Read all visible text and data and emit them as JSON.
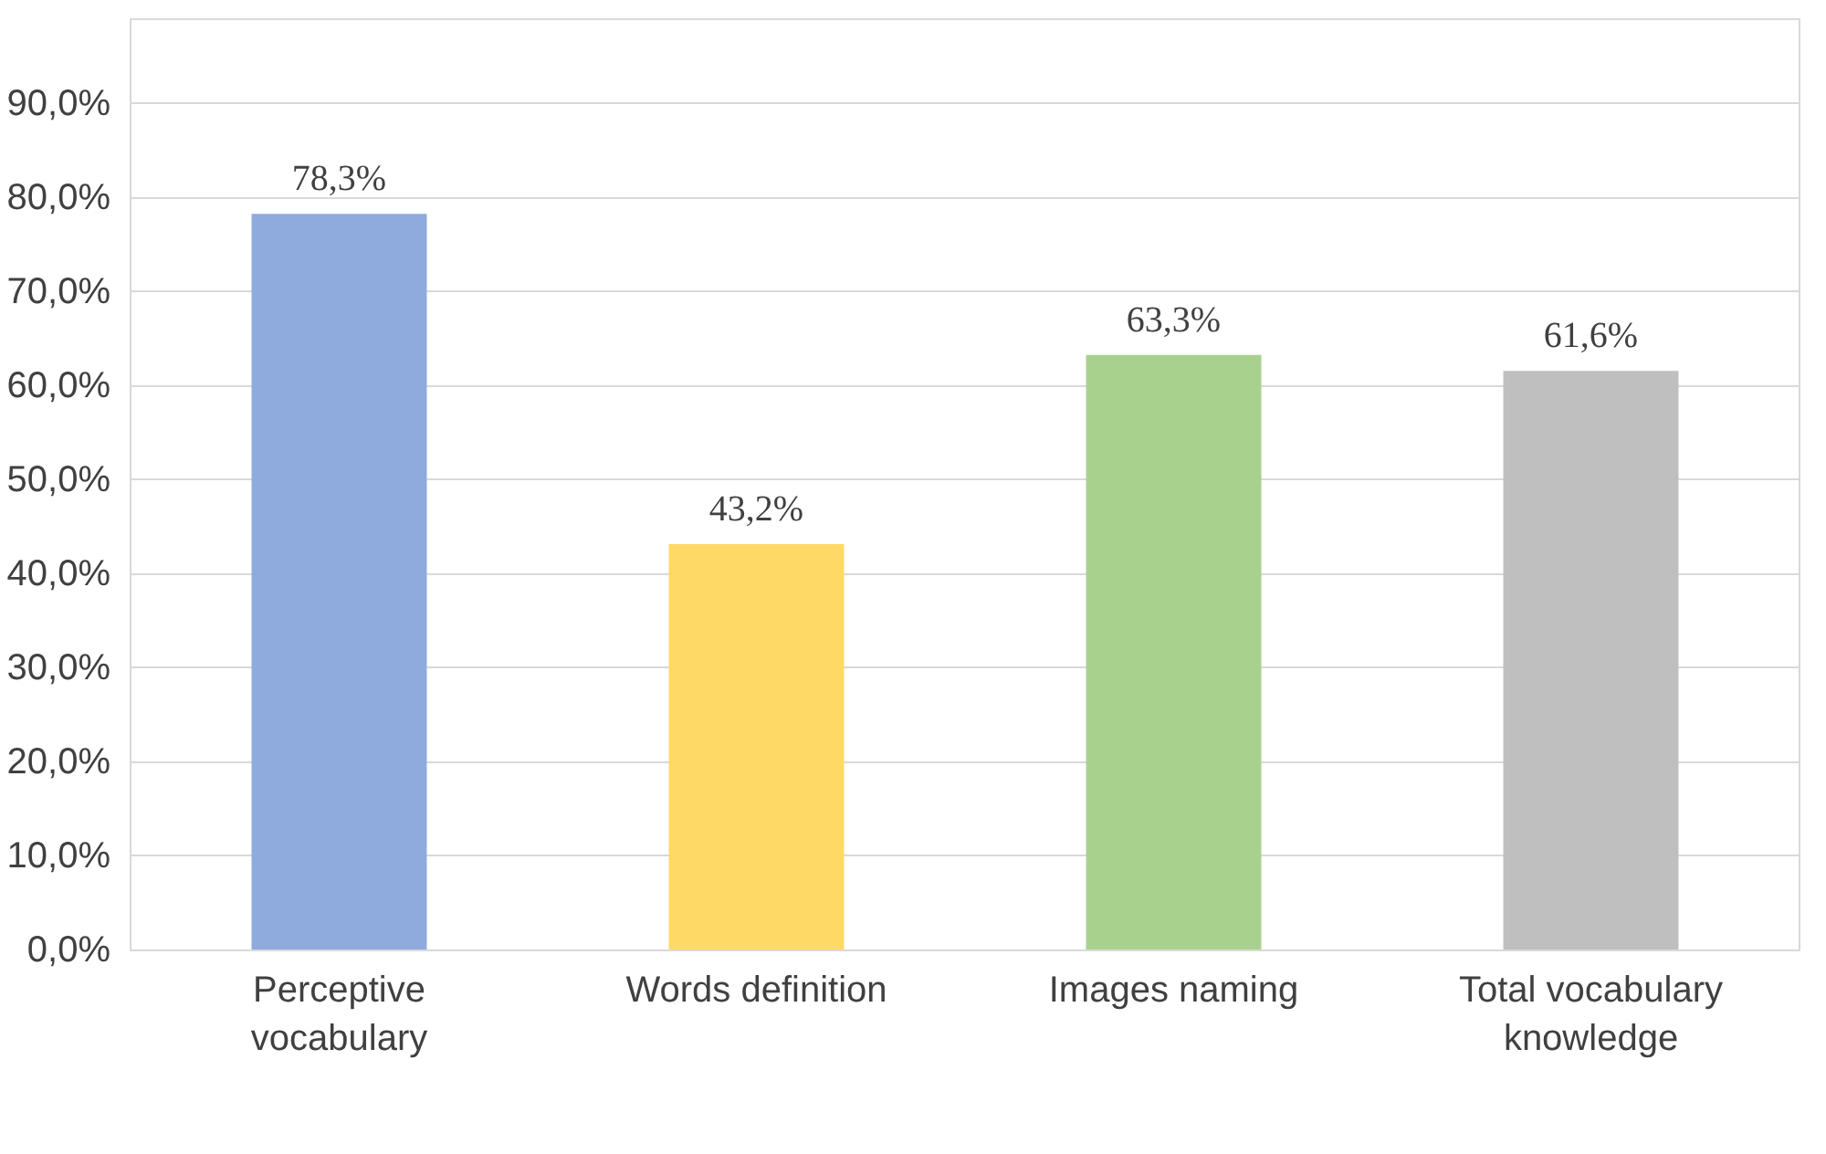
{
  "chart_data": {
    "type": "bar",
    "categories": [
      "Perceptive vocabulary",
      "Words definition",
      "Images naming",
      "Total vocabulary knowledge"
    ],
    "values": [
      78.3,
      43.2,
      63.3,
      61.6
    ],
    "colors": [
      "#8faadc",
      "#ffd966",
      "#a9d18e",
      "#bfbfbf"
    ],
    "value_labels": [
      "78,3%",
      "43,2%",
      "63,3%",
      "61,6%"
    ],
    "ylim": [
      0,
      90
    ],
    "yticks": [
      {
        "value": 0,
        "label": "0,0%"
      },
      {
        "value": 10,
        "label": "10,0%"
      },
      {
        "value": 20,
        "label": "20,0%"
      },
      {
        "value": 30,
        "label": "30,0%"
      },
      {
        "value": 40,
        "label": "40,0%"
      },
      {
        "value": 50,
        "label": "50,0%"
      },
      {
        "value": 60,
        "label": "60,0%"
      },
      {
        "value": 70,
        "label": "70,0%"
      },
      {
        "value": 80,
        "label": "80,0%"
      },
      {
        "value": 90,
        "label": "90,0%"
      }
    ],
    "grid": "y"
  }
}
